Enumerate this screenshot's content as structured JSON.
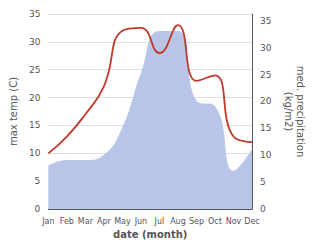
{
  "chart_data": {
    "type": "line",
    "categories": [
      "Jan",
      "Feb",
      "Mar",
      "Apr",
      "May",
      "Jun",
      "Jul",
      "Aug",
      "Sep",
      "Oct",
      "Nov",
      "Dec"
    ],
    "series": [
      {
        "type": "area",
        "axis": "y2",
        "color": "#b8c4e8",
        "values": [
          8,
          9,
          9,
          10,
          15,
          25,
          33,
          33,
          20,
          19,
          7,
          11
        ]
      },
      {
        "type": "line",
        "color": "#c0392b",
        "values": [
          10,
          13,
          17,
          22,
          32,
          32.5,
          28,
          33,
          23,
          24,
          13,
          12
        ]
      }
    ],
    "xlabel": "date (month)",
    "ylabel": "max temp (C)",
    "y2label": "med. precipitation\n(kg/m2)",
    "ylim": [
      0,
      35
    ],
    "yticks": [
      0,
      5,
      10,
      15,
      20,
      25,
      30,
      35
    ],
    "y2lim": [
      0,
      36.25
    ],
    "y2ticks": [
      0,
      5,
      10,
      15,
      20,
      25,
      30,
      35
    ],
    "grid": true
  }
}
